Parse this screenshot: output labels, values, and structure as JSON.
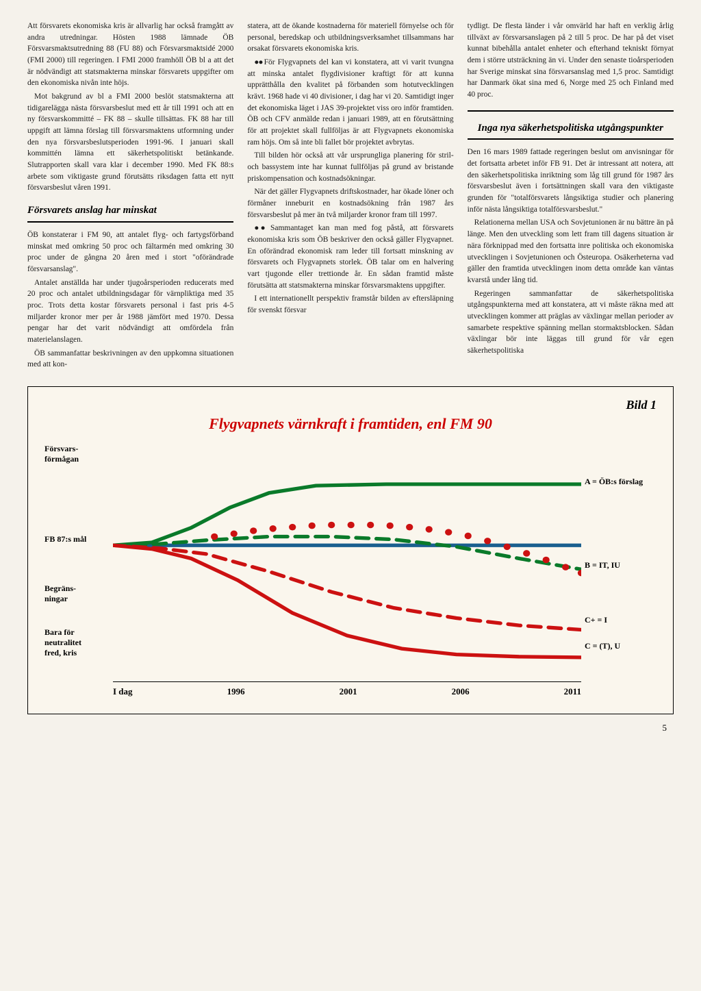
{
  "columns": {
    "col1": {
      "p1": "Att försvarets ekonomiska kris är allvarlig har också framgått av andra utredningar. Hösten 1988 lämnade ÖB Försvarsmaktsutredning 88 (FU 88) och Försvarsmaktsidé 2000 (FMI 2000) till regeringen. I FMI 2000 framhöll ÖB bl a att det är nödvändigt att statsmakterna minskar försvarets uppgifter om den ekonomiska nivån inte höjs.",
      "p2": "Mot bakgrund av bl a FMI 2000 beslöt statsmakterna att tidigarelägga nästa försvarsbeslut med ett år till 1991 och att en ny försvarskommitté – FK 88 – skulle tillsättas. FK 88 har till uppgift att lämna förslag till försvarsmaktens utformning under den nya försvarsbeslutsperioden 1991-96. I januari skall kommittén lämna ett säkerhetspolitiskt betänkande. Slutrapporten skall vara klar i december 1990. Med FK 88:s arbete som viktigaste grund förutsätts riksdagen fatta ett nytt försvarsbeslut våren 1991.",
      "h1": "Försvarets anslag har minskat",
      "p3": "ÖB konstaterar i FM 90, att antalet flyg- och fartygsförband minskat med omkring 50 proc och fältarmén med omkring 30 proc under de gångna 20 åren med i stort \"oförändrade försvarsanslag\".",
      "p4": "Antalet anställda har under tjugoårsperioden reducerats med 20 proc och antalet utbildningsdagar för värnpliktiga med 35 proc. Trots detta kostar försvarets personal i fast pris 4-5 miljarder kronor mer per år 1988 jämfört med 1970. Dessa pengar har det varit nödvändigt att omfördela från materielanslagen.",
      "p5": "ÖB sammanfattar beskrivningen av den uppkomna situationen med att kon-"
    },
    "col2": {
      "p1": "statera, att de ökande kostnaderna för materiell förnyelse och för personal, beredskap och utbildningsverksamhet tillsammans har orsakat försvarets ekonomiska kris.",
      "p2": "För Flygvapnets del kan vi konstatera, att vi varit tvungna att minska antalet flygdivisioner kraftigt för att kunna upprätthålla den kvalitet på förbanden som hotutvecklingen krävt. 1968 hade vi 40 divisioner, i dag har vi 20. Samtidigt inger det ekonomiska läget i JAS 39-projektet viss oro inför framtiden. ÖB och CFV anmälde redan i januari 1989, att en förutsättning för att projektet skall fullföljas är att Flygvapnets ekonomiska ram höjs. Om så inte bli fallet bör projektet avbrytas.",
      "p3": "Till bilden hör också att vår ursprungliga planering för stril- och bassystem inte har kunnat fullföljas på grund av bristande priskompensation och kostnadsökningar.",
      "p4": "När det gäller Flygvapnets driftskostnader, har ökade löner och förmåner inneburit en kostnadsökning från 1987 års försvarsbeslut på mer än två miljarder kronor fram till 1997.",
      "p5": "Sammantaget kan man med fog påstå, att försvarets ekonomiska kris som ÖB beskriver den också gäller Flygvapnet. En oförändrad ekonomisk ram leder till fortsatt minskning av försvarets och Flygvapnets storlek. ÖB talar om en halvering vart tjugonde eller trettionde år. En sådan framtid måste förutsätta att statsmakterna minskar försvarsmaktens uppgifter.",
      "p6": "I ett internationellt perspektiv framstår bilden av eftersläpning för svenskt försvar"
    },
    "col3": {
      "p1": "tydligt. De flesta länder i vår omvärld har haft en verklig årlig tillväxt av försvarsanslagen på 2 till 5 proc. De har på det viset kunnat bibehålla antalet enheter och efterhand tekniskt förnyat dem i större utsträckning än vi. Under den senaste tioårsperioden har Sverige minskat sina försvarsanslag med 1,5 proc. Samtidigt har Danmark ökat sina med 6, Norge med 25 och Finland med 40 proc.",
      "h1": "Inga nya säkerhetspolitiska utgångspunkter",
      "p2": "Den 16 mars 1989 fattade regeringen beslut om anvisningar för det fortsatta arbetet inför FB 91. Det är intressant att notera, att den säkerhetspolitiska inriktning som låg till grund för 1987 års försvarsbeslut även i fortsättningen skall vara den viktigaste grunden för \"totalförsvarets långsiktiga studier och planering inför nästa långsiktiga totalförsvarsbeslut.\"",
      "p3": "Relationerna mellan USA och Sovjetunionen är nu bättre än på länge. Men den utveckling som lett fram till dagens situation är nära förknippad med den fortsatta inre politiska och ekonomiska utvecklingen i Sovjetunionen och Östeuropa. Osäkerheterna vad gäller den framtida utvecklingen inom detta område kan väntas kvarstå under lång tid.",
      "p4": "Regeringen sammanfattar de säkerhetspolitiska utgångspunkterna med att konstatera, att vi måste räkna med att utvecklingen kommer att präglas av växlingar mellan perioder av samarbete respektive spänning mellan stormaktsblocken. Sådan växlingar bör inte läggas till grund för vår egen säkerhetspolitiska"
    }
  },
  "chart": {
    "bild_label": "Bild 1",
    "title": "Flygvapnets värnkraft i framtiden, enl FM 90",
    "y_labels": {
      "forsvars": "Försvars-\nförmågan",
      "fb87": "FB 87:s mål",
      "begrans": "Begräns-\nningar",
      "bara": "Bara för\nneutralitet\nfred, kris"
    },
    "r_labels": {
      "a": "A = ÖB:s förslag",
      "b": "B = IT, IU",
      "cplus": "C+ = I",
      "c": "C = (T), U"
    },
    "x_ticks": [
      "I dag",
      "1996",
      "2001",
      "2006",
      "2011"
    ],
    "colors": {
      "blue": "#1a5f8f",
      "green": "#0a7a2a",
      "red": "#cc1111",
      "title": "#cc0000",
      "bg": "#faf6ed"
    },
    "curves": {
      "blue": [
        [
          0,
          132
        ],
        [
          50,
          132
        ],
        [
          120,
          132
        ],
        [
          180,
          132
        ],
        [
          380,
          132
        ],
        [
          600,
          132
        ]
      ],
      "green_solid": [
        [
          0,
          132
        ],
        [
          50,
          128
        ],
        [
          100,
          108
        ],
        [
          150,
          80
        ],
        [
          200,
          60
        ],
        [
          260,
          50
        ],
        [
          350,
          48
        ],
        [
          450,
          48
        ],
        [
          550,
          48
        ],
        [
          600,
          48
        ]
      ],
      "red_solid": [
        [
          0,
          132
        ],
        [
          50,
          137
        ],
        [
          100,
          150
        ],
        [
          160,
          180
        ],
        [
          230,
          225
        ],
        [
          300,
          256
        ],
        [
          370,
          274
        ],
        [
          440,
          282
        ],
        [
          520,
          285
        ],
        [
          600,
          286
        ]
      ],
      "green_dash": [
        [
          0,
          132
        ],
        [
          60,
          130
        ],
        [
          120,
          125
        ],
        [
          200,
          120
        ],
        [
          280,
          120
        ],
        [
          360,
          124
        ],
        [
          440,
          134
        ],
        [
          520,
          150
        ],
        [
          600,
          165
        ]
      ],
      "red_dash": [
        [
          0,
          132
        ],
        [
          60,
          136
        ],
        [
          120,
          144
        ],
        [
          200,
          168
        ],
        [
          280,
          196
        ],
        [
          360,
          218
        ],
        [
          440,
          232
        ],
        [
          520,
          242
        ],
        [
          600,
          248
        ]
      ],
      "red_dots": [
        [
          130,
          120
        ],
        [
          155,
          116
        ],
        [
          180,
          112
        ],
        [
          205,
          109
        ],
        [
          230,
          107
        ],
        [
          255,
          105
        ],
        [
          280,
          104
        ],
        [
          305,
          104
        ],
        [
          330,
          104
        ],
        [
          355,
          105
        ],
        [
          380,
          107
        ],
        [
          405,
          110
        ],
        [
          430,
          114
        ],
        [
          455,
          119
        ],
        [
          480,
          126
        ],
        [
          505,
          134
        ],
        [
          530,
          143
        ],
        [
          555,
          152
        ],
        [
          580,
          162
        ],
        [
          600,
          170
        ]
      ]
    }
  },
  "page_number": "5"
}
